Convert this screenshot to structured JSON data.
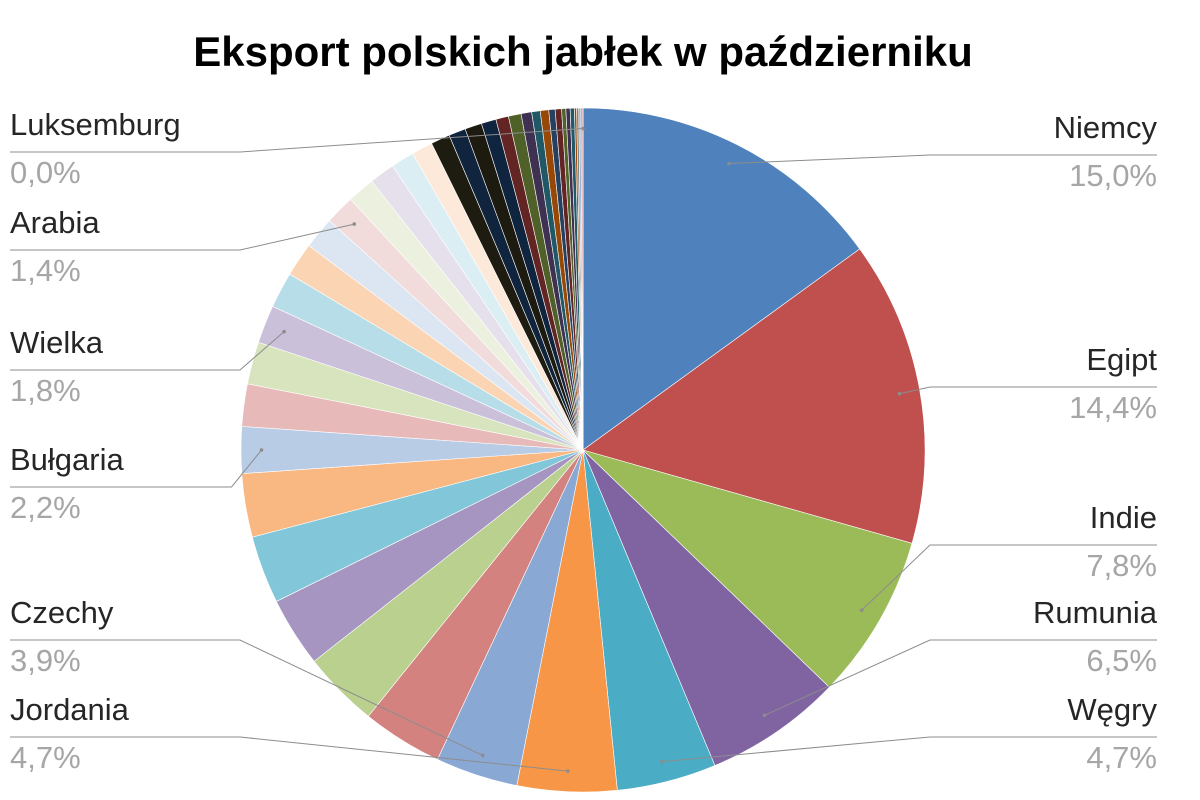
{
  "chart_data": {
    "type": "pie",
    "title": "Eksport polskich jabłek w październiku",
    "categories": [
      "Niemcy",
      "Egipt",
      "Indie",
      "Rumunia",
      "Węgry",
      "Jordania",
      "Czechy",
      null,
      null,
      null,
      null,
      null,
      "Bułgaria",
      null,
      null,
      "Wielka",
      null,
      null,
      null,
      "Arabia",
      null,
      null,
      null,
      null,
      null,
      null,
      null,
      null,
      null,
      null,
      null,
      null,
      null,
      null,
      null,
      null,
      null,
      null,
      null,
      null,
      null,
      null,
      "Luksemburg"
    ],
    "values": [
      15.0,
      14.4,
      7.8,
      6.5,
      4.7,
      4.7,
      3.9,
      3.8,
      3.6,
      3.3,
      3.2,
      3.0,
      2.2,
      2.0,
      2.0,
      1.8,
      1.7,
      1.6,
      1.5,
      1.4,
      1.3,
      1.2,
      1.1,
      1.0,
      0.9,
      0.8,
      0.8,
      0.7,
      0.6,
      0.6,
      0.5,
      0.4,
      0.4,
      0.3,
      0.3,
      0.2,
      0.2,
      0.2,
      0.1,
      0.1,
      0.1,
      0.1,
      0.0
    ],
    "value_labels": [
      "15,0%",
      "14,4%",
      "7,8%",
      "6,5%",
      "4,7%",
      "4,7%",
      "3,9%",
      null,
      null,
      null,
      null,
      null,
      "2,2%",
      null,
      null,
      "1,8%",
      null,
      null,
      null,
      "1,4%",
      null,
      null,
      null,
      null,
      null,
      null,
      null,
      null,
      null,
      null,
      null,
      null,
      null,
      null,
      null,
      null,
      null,
      null,
      null,
      null,
      null,
      null,
      "0,0%"
    ],
    "colors": [
      "#4f81bd",
      "#c0504d",
      "#9bbb59",
      "#8064a2",
      "#4bacc6",
      "#f79646",
      "#8aa8d4",
      "#d3827f",
      "#b9d08e",
      "#a695c1",
      "#81c7d9",
      "#f9b781",
      "#b9cce6",
      "#e7b9b8",
      "#d7e4bd",
      "#cbc0da",
      "#b7dee8",
      "#fbd4b4",
      "#dce6f2",
      "#f2dcdb",
      "#ebf1de",
      "#e6e0ec",
      "#dbeef4",
      "#fde9d9",
      "#1e1c11",
      "#10243e",
      "#1d1b10",
      "#0f243e",
      "#632523",
      "#4f6128",
      "#3f3151",
      "#205867",
      "#974806",
      "#254061",
      "#632423",
      "#4f6228",
      "#403152",
      "#215968",
      "#984807",
      "#7f7f7f",
      "#95b3d7",
      "#d99694",
      "#c3d69b"
    ]
  }
}
